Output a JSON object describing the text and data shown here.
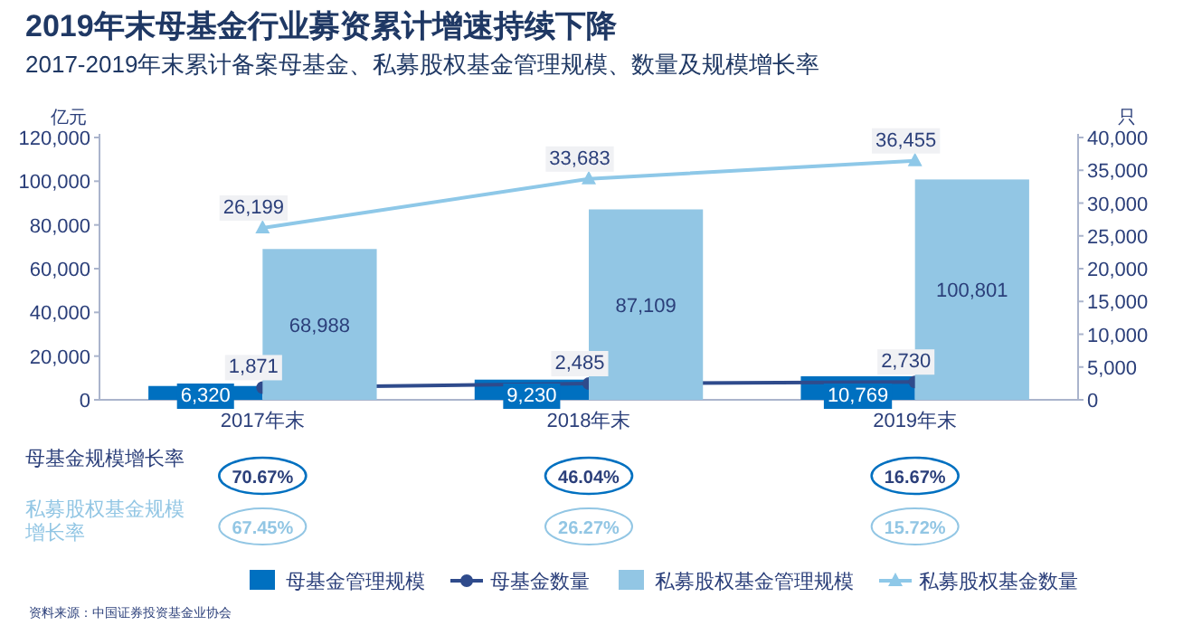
{
  "chart_data": {
    "type": "bar",
    "title": "2019年末母基金行业募资累计增速持续下降",
    "subtitle": "2017-2019年末累计备案母基金、私募股权基金管理规模、数量及规模增长率",
    "ylabel": "亿元",
    "y2label": "只",
    "categories": [
      "2017年末",
      "2018年末",
      "2019年末"
    ],
    "series": [
      {
        "name": "母基金管理规模",
        "color": "#0070c0",
        "values": [
          6320,
          9230,
          10769
        ],
        "value_labels": [
          "6,320",
          "9,230",
          "10,769"
        ]
      },
      {
        "name": "母基金数量",
        "type": "line",
        "axis": "y2",
        "marker": "circle",
        "color": "#2f4b8c",
        "values": [
          1871,
          2485,
          2730
        ],
        "value_labels": [
          "1,871",
          "2,485",
          "2,730"
        ]
      },
      {
        "name": "私募股权基金管理规模",
        "color": "#92c6e4",
        "values": [
          68988,
          87109,
          100801
        ],
        "value_labels": [
          "68,988",
          "87,109",
          "100,801"
        ]
      },
      {
        "name": "私募股权基金数量",
        "type": "line",
        "axis": "y2",
        "marker": "triangle",
        "color": "#8ec8e8",
        "values": [
          26199,
          33683,
          36455
        ],
        "value_labels": [
          "26,199",
          "33,683",
          "36,455"
        ]
      }
    ],
    "ylim": [
      0,
      120000
    ],
    "yticks": [
      {
        "value": 0,
        "label": "0"
      },
      {
        "value": 20000,
        "label": "20,000"
      },
      {
        "value": 40000,
        "label": "40,000"
      },
      {
        "value": 60000,
        "label": "60,000"
      },
      {
        "value": 80000,
        "label": "80,000"
      },
      {
        "value": 100000,
        "label": "100,000"
      },
      {
        "value": 120000,
        "label": "120,000"
      }
    ],
    "y2lim": [
      0,
      40000
    ],
    "y2ticks": [
      {
        "value": 0,
        "label": "0"
      },
      {
        "value": 5000,
        "label": "5,000"
      },
      {
        "value": 10000,
        "label": "10,000"
      },
      {
        "value": 15000,
        "label": "15,000"
      },
      {
        "value": 20000,
        "label": "20,000"
      },
      {
        "value": 25000,
        "label": "25,000"
      },
      {
        "value": 30000,
        "label": "30,000"
      },
      {
        "value": 35000,
        "label": "35,000"
      },
      {
        "value": 40000,
        "label": "40,000"
      }
    ],
    "grid": false,
    "legend": "bottom",
    "annotations": [
      "母基金规模增长率",
      "70.67%",
      "46.04%",
      "16.67%",
      "私募股权基金规模增长率",
      "67.45%",
      "26.27%",
      "15.72%",
      "资料来源：中国证券投资基金业协会"
    ]
  }
}
